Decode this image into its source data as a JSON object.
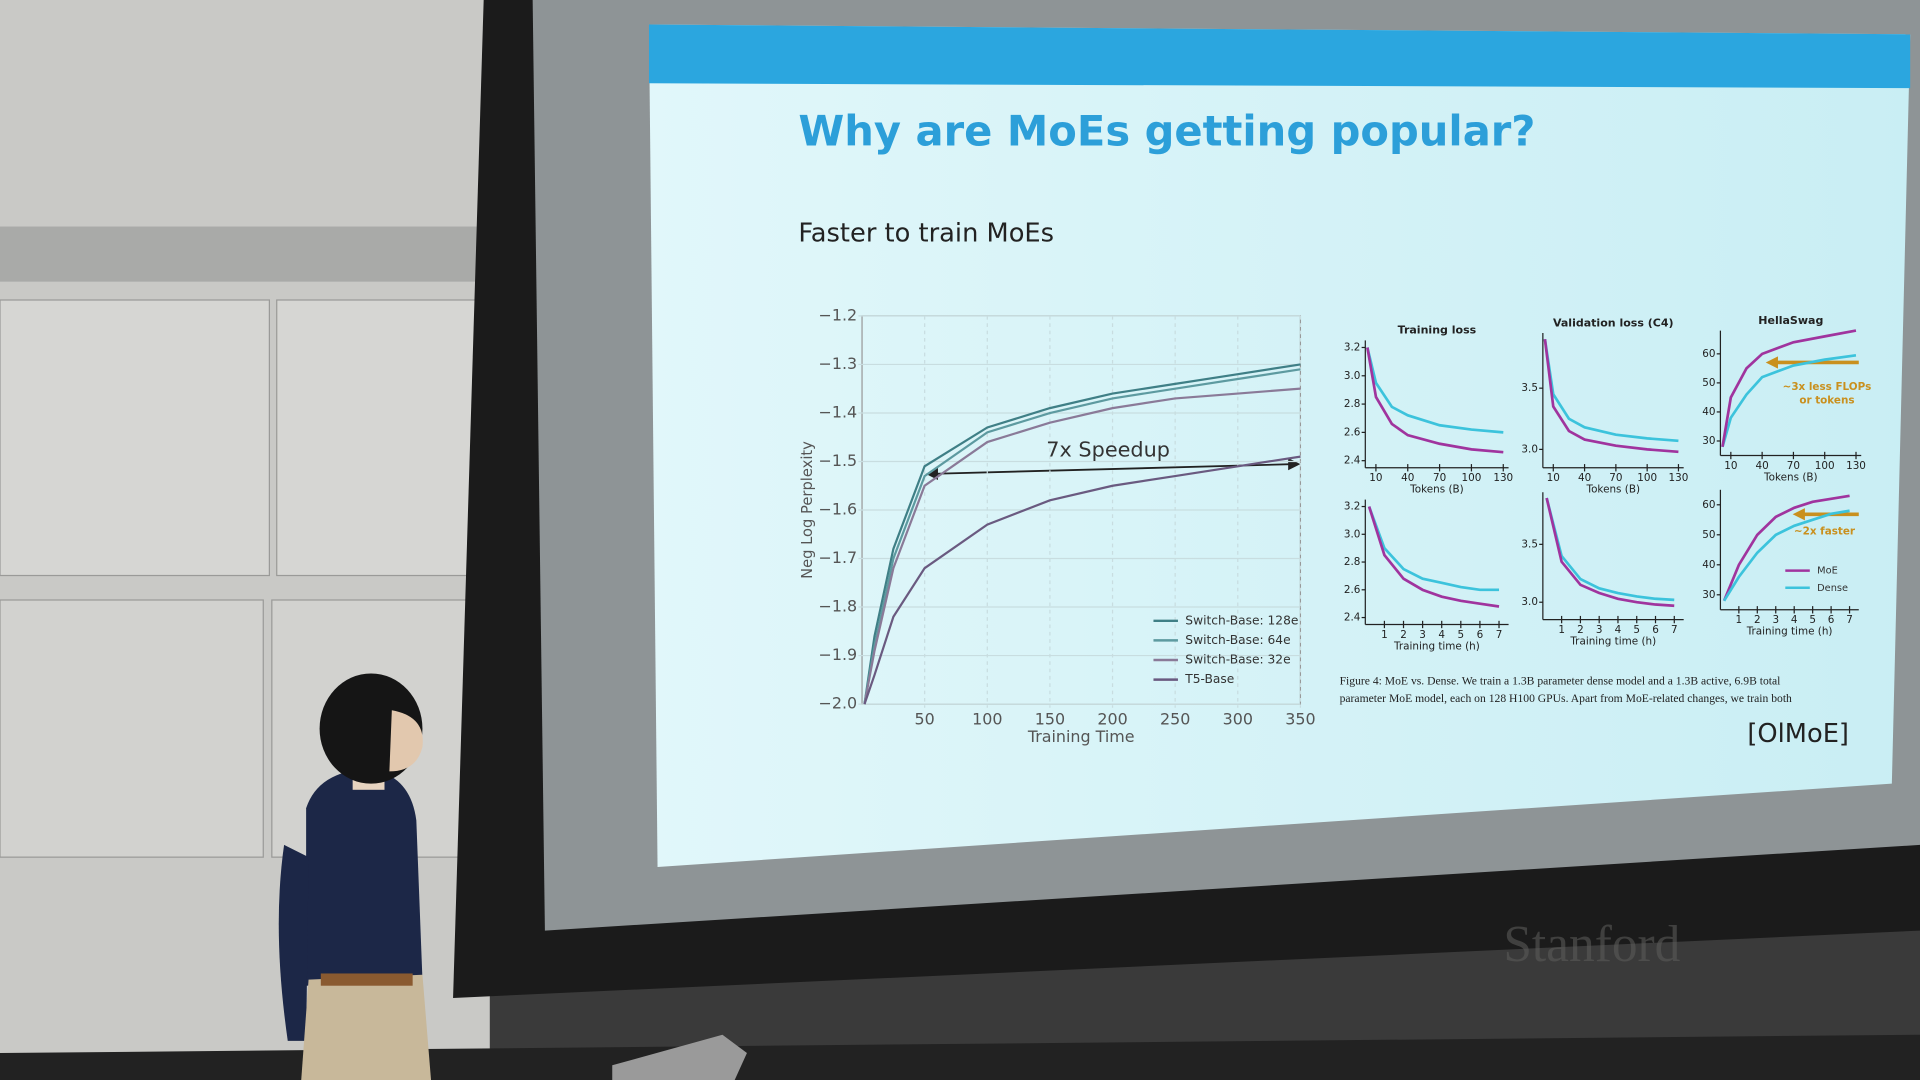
{
  "slide": {
    "title": "Why are MoEs getting popular?",
    "subtitle": "Faster to train MoEs",
    "caption": [
      "Figure 4: MoE vs. Dense. We train a 1.3B parameter dense model and a 1.3B active, 6.9B total",
      "parameter MoE model, each on 128 H100 GPUs. Apart from MoE-related changes, we train both"
    ],
    "citation": "[OlMoE]",
    "watermark": "Stanford"
  },
  "chart_data": [
    {
      "type": "line",
      "xlabel": "Training Time",
      "ylabel": "Neg Log Perplexity",
      "annotation": "7x Speedup",
      "x": [
        2,
        10,
        25,
        50,
        100,
        150,
        200,
        250,
        300,
        350
      ],
      "xlim": [
        0,
        350
      ],
      "xticks": [
        50,
        100,
        150,
        200,
        250,
        300,
        350
      ],
      "ylim": [
        -2.0,
        -1.2
      ],
      "yticks": [
        {
          "value": -1.2,
          "label": "−1.2"
        },
        {
          "value": -1.3,
          "label": "−1.3"
        },
        {
          "value": -1.4,
          "label": "−1.4"
        },
        {
          "value": -1.5,
          "label": "−1.5"
        },
        {
          "value": -1.6,
          "label": "−1.6"
        },
        {
          "value": -1.7,
          "label": "−1.7"
        },
        {
          "value": -1.8,
          "label": "−1.8"
        },
        {
          "value": -1.9,
          "label": "−1.9"
        },
        {
          "value": -2.0,
          "label": "−2.0"
        }
      ],
      "grid": true,
      "legend": "lower right",
      "series": [
        {
          "name": "Switch-Base: 128e",
          "color": "#3f7f86",
          "values": [
            -2.0,
            -1.86,
            -1.68,
            -1.51,
            -1.43,
            -1.39,
            -1.36,
            -1.34,
            -1.32,
            -1.3
          ]
        },
        {
          "name": "Switch-Base: 64e",
          "color": "#5d9aa0",
          "values": [
            -2.0,
            -1.88,
            -1.7,
            -1.53,
            -1.44,
            -1.4,
            -1.37,
            -1.35,
            -1.33,
            -1.31
          ]
        },
        {
          "name": "Switch-Base: 32e",
          "color": "#8a7a98",
          "values": [
            -2.0,
            -1.89,
            -1.72,
            -1.55,
            -1.46,
            -1.42,
            -1.39,
            -1.37,
            -1.36,
            -1.35
          ]
        },
        {
          "name": "T5-Base",
          "color": "#6a5a80",
          "values": [
            -2.0,
            -1.94,
            -1.82,
            -1.72,
            -1.63,
            -1.58,
            -1.55,
            -1.53,
            -1.51,
            -1.49
          ]
        }
      ]
    },
    {
      "type": "line",
      "title": "Training loss",
      "xlabel": "Tokens (B)",
      "x": [
        2,
        10,
        25,
        40,
        70,
        100,
        130
      ],
      "xlim": [
        0,
        135
      ],
      "xticks": [
        10,
        40,
        70,
        100,
        130
      ],
      "ylim": [
        2.35,
        3.25
      ],
      "yticks": [
        2.4,
        2.6,
        2.8,
        {
          "value": 3,
          "label": "3.0"
        },
        3.2
      ],
      "series": [
        {
          "color": "#3cc3dc",
          "values": [
            3.2,
            2.95,
            2.78,
            2.72,
            2.65,
            2.62,
            2.6
          ]
        },
        {
          "color": "#a0349e",
          "values": [
            3.2,
            2.85,
            2.66,
            2.58,
            2.52,
            2.48,
            2.46
          ]
        }
      ]
    },
    {
      "type": "line",
      "title": "Validation loss (C4)",
      "xlabel": "Tokens (B)",
      "x": [
        2,
        10,
        25,
        40,
        70,
        100,
        130
      ],
      "xlim": [
        0,
        135
      ],
      "xticks": [
        10,
        40,
        70,
        100,
        130
      ],
      "ylim": [
        2.85,
        3.95
      ],
      "yticks": [
        {
          "value": 3,
          "label": "3.0"
        },
        3.5
      ],
      "series": [
        {
          "color": "#3cc3dc",
          "values": [
            3.9,
            3.45,
            3.25,
            3.18,
            3.12,
            3.09,
            3.07
          ]
        },
        {
          "color": "#a0349e",
          "values": [
            3.9,
            3.35,
            3.15,
            3.08,
            3.03,
            3.0,
            2.98
          ]
        }
      ]
    },
    {
      "type": "line",
      "title": "HellaSwag",
      "xlabel": "Tokens (B)",
      "annotation": [
        "~3x less FLOPs",
        "or tokens"
      ],
      "x": [
        2,
        10,
        25,
        40,
        70,
        100,
        130
      ],
      "xlim": [
        0,
        135
      ],
      "xticks": [
        10,
        40,
        70,
        100,
        130
      ],
      "ylim": [
        25,
        68
      ],
      "yticks": [
        30,
        40,
        50,
        60
      ],
      "series": [
        {
          "color": "#3cc3dc",
          "values": [
            28,
            38,
            46,
            52,
            56,
            58,
            59.5
          ]
        },
        {
          "color": "#a0349e",
          "values": [
            28,
            45,
            55,
            60,
            64,
            66,
            68
          ]
        }
      ]
    },
    {
      "type": "line",
      "xlabel": "Training time (h)",
      "x": [
        0.2,
        1,
        2,
        3,
        4,
        5,
        6,
        7
      ],
      "xlim": [
        0,
        7.5
      ],
      "xticks": [
        1,
        2,
        3,
        4,
        5,
        6,
        7
      ],
      "ylim": [
        2.35,
        3.25
      ],
      "yticks": [
        2.4,
        2.6,
        2.8,
        {
          "value": 3,
          "label": "3.0"
        },
        3.2
      ],
      "series": [
        {
          "color": "#3cc3dc",
          "values": [
            3.2,
            2.9,
            2.75,
            2.68,
            2.65,
            2.62,
            2.6,
            2.6
          ]
        },
        {
          "color": "#a0349e",
          "values": [
            3.2,
            2.85,
            2.68,
            2.6,
            2.55,
            2.52,
            2.5,
            2.48
          ]
        }
      ]
    },
    {
      "type": "line",
      "xlabel": "Training time (h)",
      "x": [
        0.2,
        1,
        2,
        3,
        4,
        5,
        6,
        7
      ],
      "xlim": [
        0,
        7.5
      ],
      "xticks": [
        1,
        2,
        3,
        4,
        5,
        6,
        7
      ],
      "ylim": [
        2.85,
        3.95
      ],
      "yticks": [
        {
          "value": 3,
          "label": "3.0"
        },
        3.5
      ],
      "series": [
        {
          "color": "#3cc3dc",
          "values": [
            3.9,
            3.4,
            3.2,
            3.12,
            3.08,
            3.05,
            3.03,
            3.02
          ]
        },
        {
          "color": "#a0349e",
          "values": [
            3.9,
            3.35,
            3.15,
            3.08,
            3.03,
            3.0,
            2.98,
            2.97
          ]
        }
      ]
    },
    {
      "type": "line",
      "xlabel": "Training time (h)",
      "annotation": [
        "~2x faster"
      ],
      "x": [
        0.2,
        1,
        2,
        3,
        4,
        5,
        6,
        7
      ],
      "xlim": [
        0,
        7.5
      ],
      "xticks": [
        1,
        2,
        3,
        4,
        5,
        6,
        7
      ],
      "ylim": [
        25,
        65
      ],
      "yticks": [
        30,
        40,
        50,
        60
      ],
      "legend": "lower right",
      "series": [
        {
          "name": "MoE",
          "color": "#a0349e",
          "values": [
            28,
            40,
            50,
            56,
            59,
            61,
            62,
            63
          ]
        },
        {
          "name": "Dense",
          "color": "#3cc3dc",
          "values": [
            28,
            36,
            44,
            50,
            53,
            55,
            57,
            58
          ]
        }
      ]
    }
  ]
}
